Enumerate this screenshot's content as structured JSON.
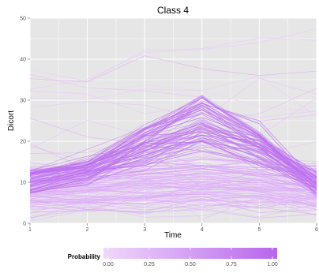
{
  "chart_data": {
    "type": "line",
    "title": "Class 4",
    "xlabel": "Time",
    "ylabel": "Dicort",
    "x": [
      1,
      2,
      3,
      4,
      5,
      6
    ],
    "xlim": [
      1,
      6
    ],
    "ylim": [
      0,
      50
    ],
    "xticks": [
      "1",
      "2",
      "3",
      "4",
      "5",
      "6"
    ],
    "yticks": [
      "0",
      "10",
      "20",
      "30",
      "40",
      "50"
    ],
    "grid": true,
    "panel_background": "#e6e6e6",
    "legend": {
      "title": "Probability",
      "position": "bottom",
      "ticks": [
        "0.00",
        "0.25",
        "0.50",
        "0.75",
        "1.00"
      ],
      "low_color": "#f0d8fb",
      "high_color": "#b766ec"
    },
    "series_summary": "Spaghetti plot of ~200 individual trajectories; high-probability members peak near time 4 (about 20–33); low-probability members lie mostly below 15."
  }
}
